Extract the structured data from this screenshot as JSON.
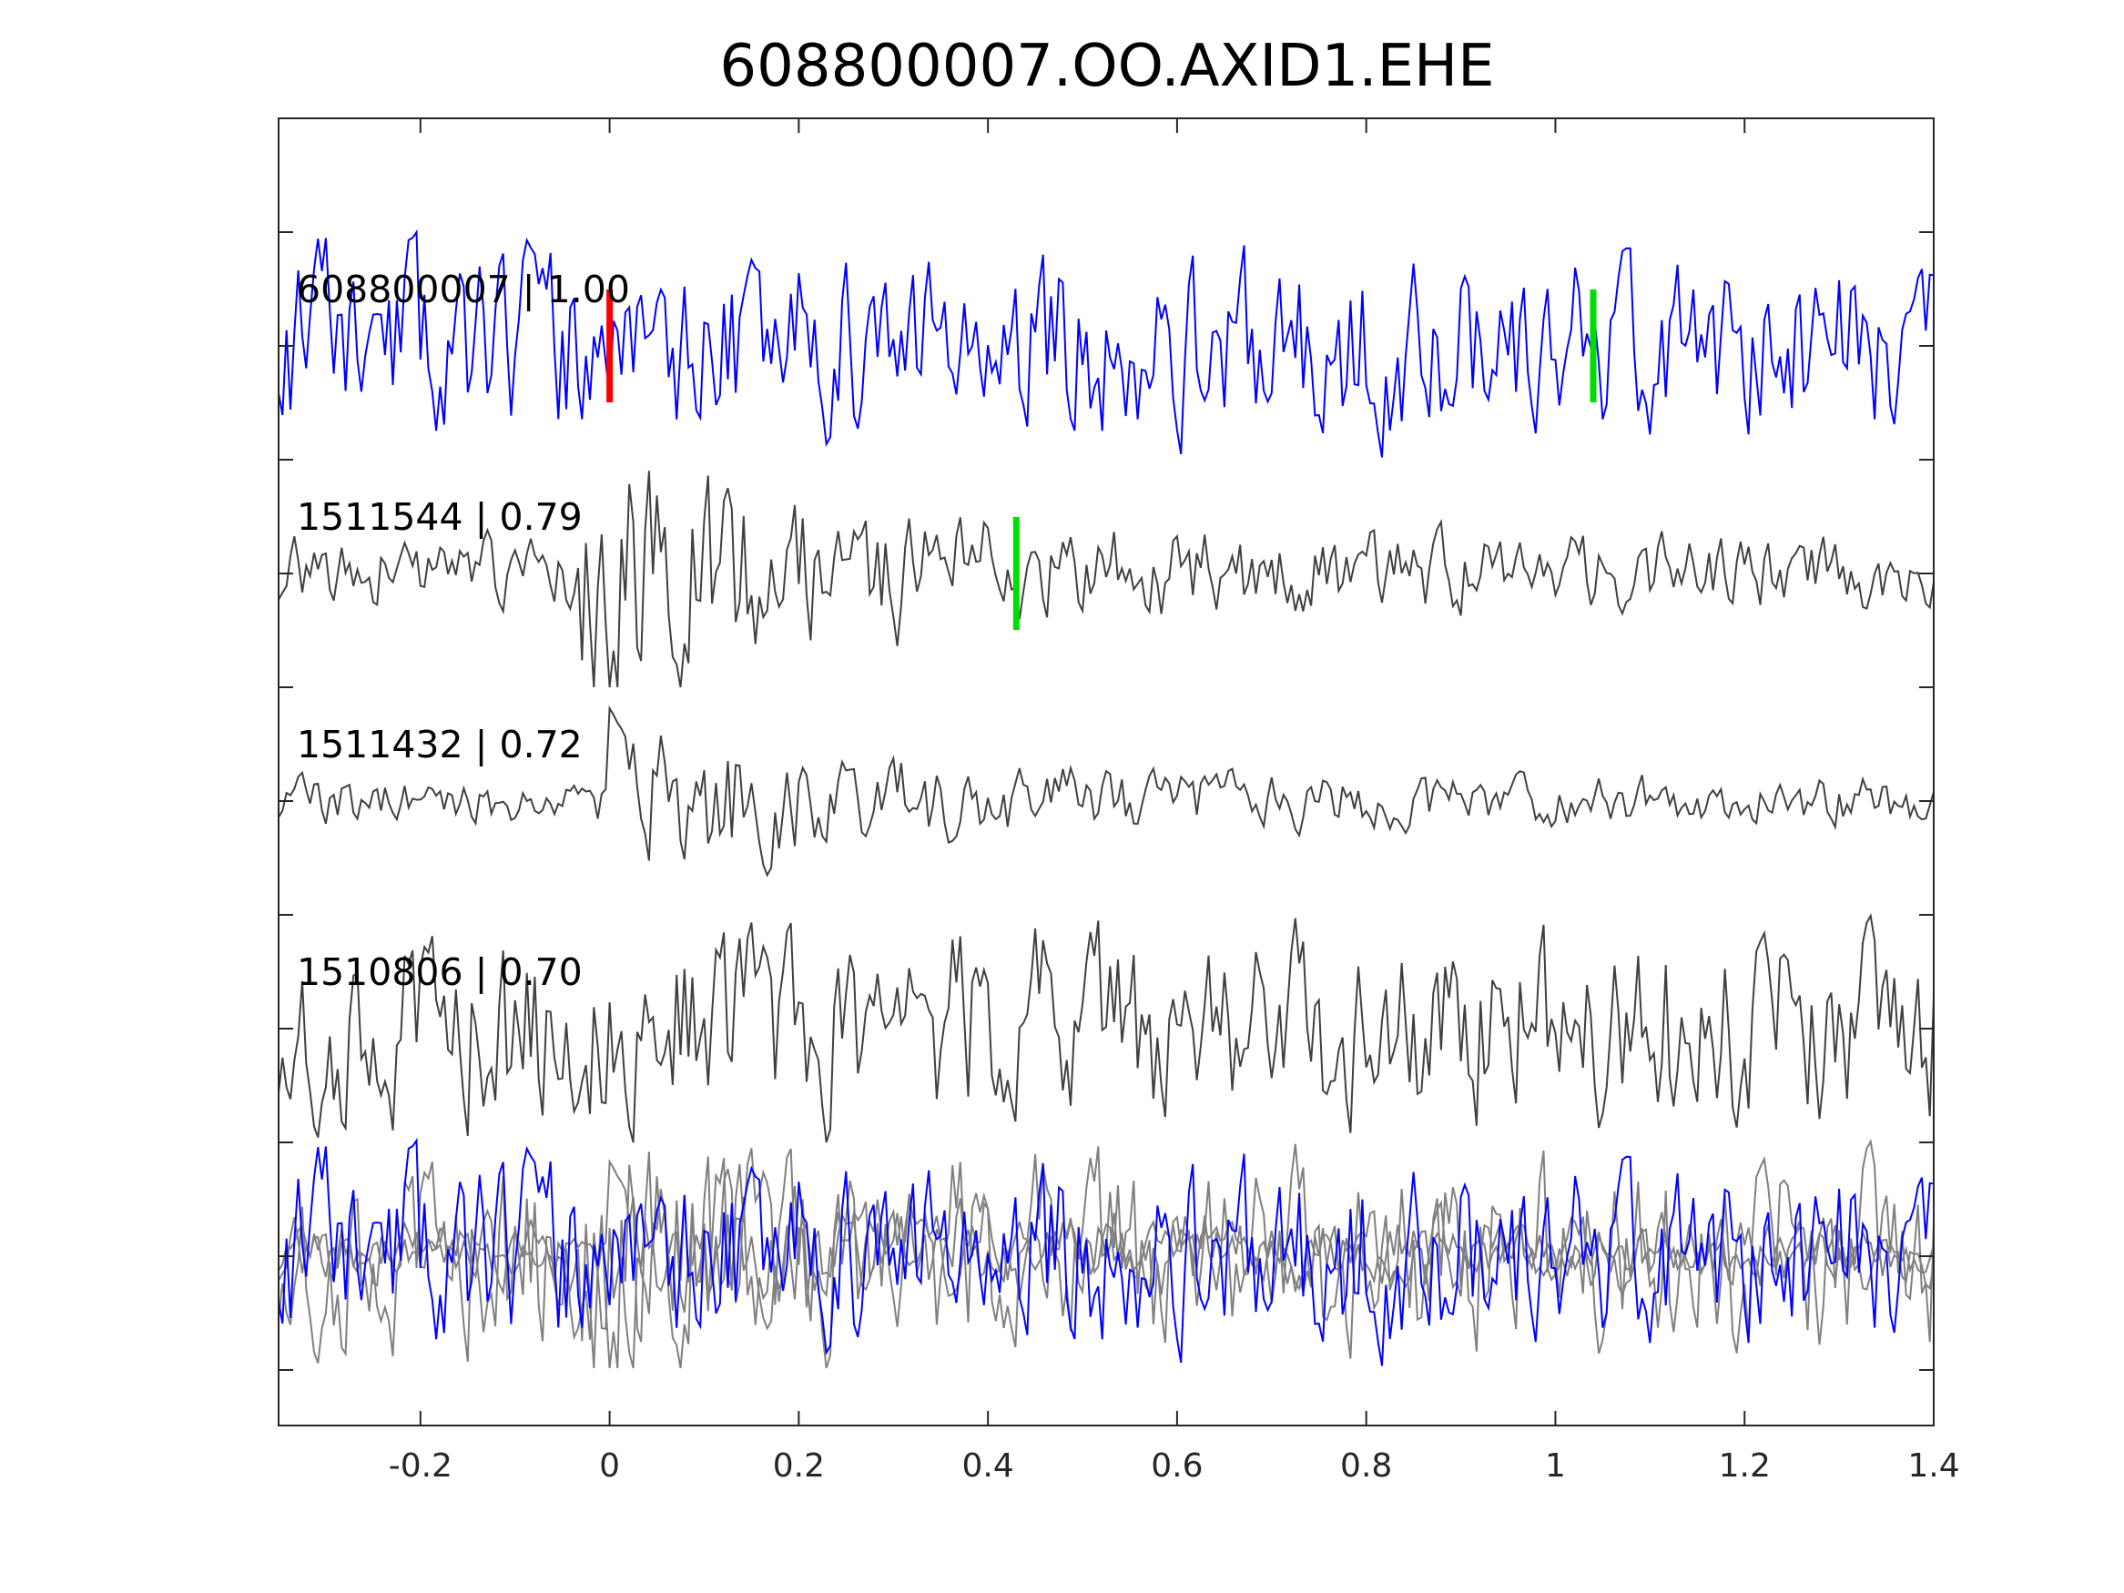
{
  "title": "608800007.OO.AXID1.EHE",
  "colors": {
    "template": "#0000ff",
    "matches": "#404040",
    "overlay_gray": "#808080",
    "pick_red": "#ff0000",
    "pick_green": "#00dd00",
    "axis": "#262626"
  },
  "chart_data": {
    "type": "line",
    "title": "608800007.OO.AXID1.EHE",
    "xlabel": "",
    "ylabel": "",
    "xlim": [
      -0.35,
      1.4
    ],
    "x_ticks": [
      -0.2,
      0,
      0.2,
      0.4,
      0.6,
      0.8,
      1,
      1.2,
      1.4
    ],
    "x_tick_labels": [
      "-0.2",
      "0",
      "0.2",
      "0.4",
      "0.6",
      "0.8",
      "1",
      "1.2",
      "1.4"
    ],
    "y_ticks_count": 12,
    "grid": false,
    "traces": [
      {
        "label": "608800007 | 1.00",
        "id": "608800007",
        "cc": "1.00",
        "color": "#0000ff",
        "amplitude": 0.75,
        "seed": 11,
        "event_onset": null
      },
      {
        "label": "1511544 | 0.79",
        "id": "1511544",
        "cc": "0.79",
        "color": "#404040",
        "amplitude": 0.85,
        "seed": 23,
        "event_onset": -0.03
      },
      {
        "label": "1511432 | 0.72",
        "id": "1511432",
        "cc": "0.72",
        "color": "#404040",
        "amplitude": 0.55,
        "seed": 37,
        "event_onset": 0.0
      },
      {
        "label": "1510806 | 0.70",
        "id": "1510806",
        "cc": "0.70",
        "color": "#404040",
        "amplitude": 0.8,
        "seed": 51,
        "event_onset": null
      }
    ],
    "overlay": {
      "description": "all traces stacked",
      "colors": [
        "#0000ff",
        "#808080"
      ]
    },
    "picks": [
      {
        "trace": 0,
        "x": 0.0,
        "color": "#ff0000"
      },
      {
        "trace": 0,
        "x": 1.04,
        "color": "#00dd00"
      },
      {
        "trace": 1,
        "x": 0.43,
        "color": "#00dd00"
      }
    ]
  }
}
